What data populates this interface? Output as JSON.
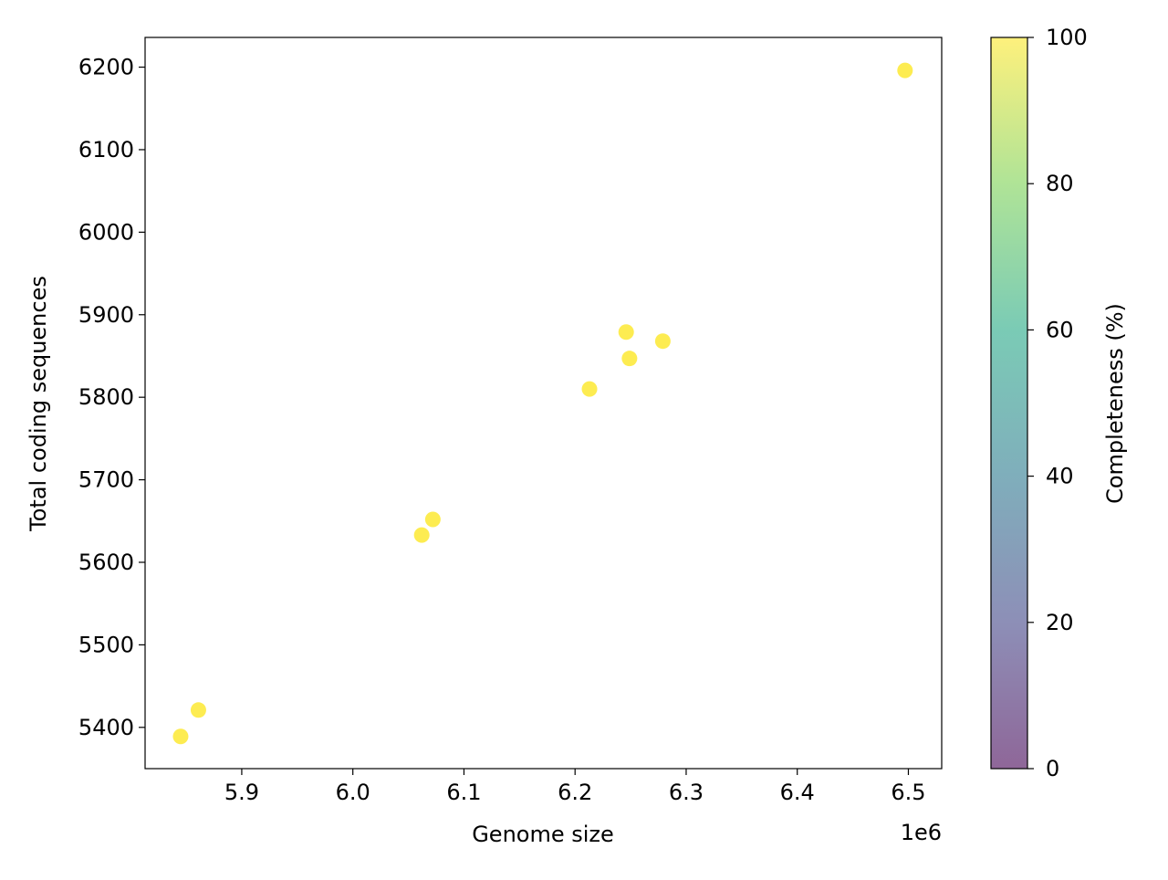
{
  "chart_data": {
    "type": "scatter",
    "title": "",
    "xlabel": "Genome size",
    "ylabel": "Total coding sequences",
    "x_offset_label": "1e6",
    "xlim": [
      5813000,
      6530000
    ],
    "ylim": [
      5350,
      6236
    ],
    "xticks": [
      5.9,
      6.0,
      6.1,
      6.2,
      6.3,
      6.4,
      6.5
    ],
    "xtick_labels": [
      "5.9",
      "6.0",
      "6.1",
      "6.2",
      "6.3",
      "6.4",
      "6.5"
    ],
    "yticks": [
      5400,
      5500,
      5600,
      5700,
      5800,
      5900,
      6000,
      6100,
      6200
    ],
    "ytick_labels": [
      "5400",
      "5500",
      "5600",
      "5700",
      "5800",
      "5900",
      "6000",
      "6100",
      "6200"
    ],
    "grid": false,
    "points": [
      {
        "x": 6497000,
        "y": 6196,
        "c": 100
      },
      {
        "x": 6246000,
        "y": 5879,
        "c": 100
      },
      {
        "x": 6279000,
        "y": 5868,
        "c": 100
      },
      {
        "x": 6249000,
        "y": 5847,
        "c": 100
      },
      {
        "x": 6213000,
        "y": 5810,
        "c": 100
      },
      {
        "x": 6072000,
        "y": 5652,
        "c": 100
      },
      {
        "x": 6062000,
        "y": 5633,
        "c": 100
      },
      {
        "x": 5861000,
        "y": 5421,
        "c": 100
      },
      {
        "x": 5845000,
        "y": 5389,
        "c": 100
      }
    ],
    "colorbar": {
      "label": "Completeness (%)",
      "range": [
        0,
        100
      ],
      "ticks": [
        0,
        20,
        40,
        60,
        80,
        100
      ],
      "tick_labels": [
        "0",
        "20",
        "40",
        "60",
        "80",
        "100"
      ],
      "colormap": "viridis",
      "colormap_stops": [
        "#440154",
        "#414487",
        "#2a788e",
        "#22a884",
        "#7ad151",
        "#fde725"
      ]
    }
  }
}
